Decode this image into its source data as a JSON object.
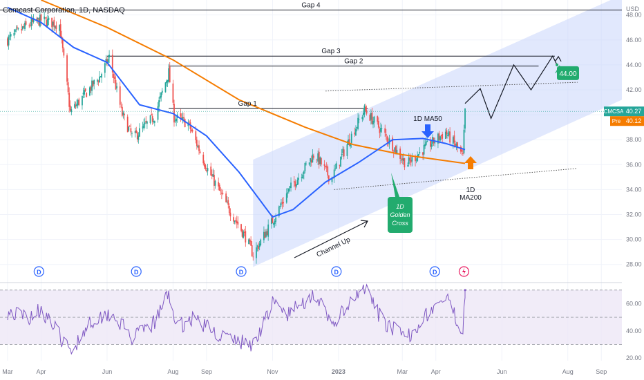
{
  "header": {
    "title": "Comcast Corporation, 1D, NASDAQ",
    "currency": "USD"
  },
  "colors": {
    "up": "#26a69a",
    "down": "#ef5350",
    "ma50": "#2962ff",
    "ma200": "#f57c00",
    "channel": "#c8d6fb",
    "rsi": "#7e57c2",
    "rsi_band": "#ede7f6",
    "badge_green": "#22ab6e",
    "badge_last": "#26a69a",
    "badge_pre": "#f57c00"
  },
  "icons": {
    "dividend": "D",
    "earnings": "lightning-icon"
  },
  "chart_data": [
    {
      "type": "line",
      "title": "Comcast Corporation, 1D, NASDAQ",
      "ylabel": "USD",
      "ylim": [
        26.6,
        49.2
      ],
      "x_axis_labels": [
        "Mar",
        "Apr",
        "Jun",
        "Aug",
        "Sep",
        "Nov",
        "2023",
        "Mar",
        "Apr",
        "Jun",
        "Aug",
        "Sep"
      ],
      "y_axis_labels": [
        "48.00",
        "46.00",
        "44.00",
        "42.00",
        "40.00",
        "38.00",
        "36.00",
        "34.00",
        "32.00",
        "30.00",
        "28.00"
      ],
      "y_ticks": [
        48,
        46,
        44,
        42,
        40,
        38,
        36,
        34,
        32,
        30,
        28
      ],
      "grid": true,
      "price_path": [
        [
          "2022-03-01",
          46.0
        ],
        [
          "2022-03-20",
          47.2
        ],
        [
          "2022-04-01",
          47.6
        ],
        [
          "2022-04-18",
          47.2
        ],
        [
          "2022-04-28",
          40.2
        ],
        [
          "2022-05-15",
          42.0
        ],
        [
          "2022-05-25",
          43.0
        ],
        [
          "2022-06-03",
          44.6
        ],
        [
          "2022-06-15",
          40.0
        ],
        [
          "2022-06-25",
          38.1
        ],
        [
          "2022-07-15",
          39.9
        ],
        [
          "2022-07-28",
          43.4
        ],
        [
          "2022-08-02",
          39.8
        ],
        [
          "2022-08-15",
          39.3
        ],
        [
          "2022-09-01",
          35.8
        ],
        [
          "2022-09-20",
          32.7
        ],
        [
          "2022-10-07",
          30.2
        ],
        [
          "2022-10-14",
          28.8
        ],
        [
          "2022-11-01",
          31.5
        ],
        [
          "2022-11-15",
          33.8
        ],
        [
          "2022-12-10",
          36.9
        ],
        [
          "2022-12-25",
          34.8
        ],
        [
          "2023-01-10",
          37.8
        ],
        [
          "2023-01-25",
          40.4
        ],
        [
          "2023-02-10",
          38.7
        ],
        [
          "2023-03-05",
          36.0
        ],
        [
          "2023-03-20",
          37.2
        ],
        [
          "2023-04-10",
          38.6
        ],
        [
          "2023-04-22",
          37.2
        ],
        [
          "2023-04-26",
          36.6
        ],
        [
          "2023-04-28",
          40.27
        ]
      ],
      "series": [
        {
          "name": "1D MA50",
          "values": [
            [
              "2022-03-01",
              48.6
            ],
            [
              "2022-04-01",
              47.4
            ],
            [
              "2022-05-01",
              45.4
            ],
            [
              "2022-06-01",
              44.2
            ],
            [
              "2022-07-01",
              40.8
            ],
            [
              "2022-08-01",
              40.1
            ],
            [
              "2022-09-01",
              38.3
            ],
            [
              "2022-10-01",
              35.4
            ],
            [
              "2022-11-01",
              31.8
            ],
            [
              "2022-11-20",
              32.4
            ],
            [
              "2022-12-20",
              34.6
            ],
            [
              "2023-01-20",
              36.2
            ],
            [
              "2023-02-20",
              38.0
            ],
            [
              "2023-03-20",
              38.1
            ],
            [
              "2023-04-10",
              37.7
            ],
            [
              "2023-04-28",
              37.2
            ]
          ]
        },
        {
          "name": "1D MA200",
          "values": [
            [
              "2022-04-01",
              49.2
            ],
            [
              "2022-06-01",
              47.0
            ],
            [
              "2022-08-01",
              44.4
            ],
            [
              "2022-10-01",
              41.2
            ],
            [
              "2022-12-01",
              39.0
            ],
            [
              "2023-01-15",
              37.6
            ],
            [
              "2023-03-01",
              36.8
            ],
            [
              "2023-04-28",
              36.1
            ]
          ]
        }
      ],
      "horizontal_levels": [
        {
          "label": "Gap 4",
          "value": 48.4
        },
        {
          "label": "Gap 3",
          "value": 44.7
        },
        {
          "label": "Gap 2",
          "value": 43.9
        },
        {
          "label": "Gap 1",
          "value": 40.5
        }
      ],
      "projection": [
        [
          "2023-04-28",
          40.9
        ],
        [
          "2023-05-12",
          42.1
        ],
        [
          "2023-05-22",
          39.7
        ],
        [
          "2023-06-12",
          44.0
        ],
        [
          "2023-06-28",
          42.0
        ],
        [
          "2023-07-18",
          44.7
        ],
        [
          "2023-07-22",
          44.0
        ]
      ],
      "target": {
        "label": "44.00",
        "value": 44.0
      },
      "last_price": {
        "symbol": "CMCSA",
        "value": "40.27"
      },
      "pre_price": {
        "symbol": "Pre",
        "value": "40.12"
      },
      "annotations": [
        {
          "text": "Channel Up"
        },
        {
          "text": "1D MA50"
        },
        {
          "text": "1D MA200",
          "lines": [
            "1D",
            "MA200"
          ]
        },
        {
          "text": "1D Golden Cross",
          "lines": [
            "1D",
            "Golden",
            "Cross"
          ]
        }
      ]
    },
    {
      "type": "line",
      "title": "",
      "ylim": [
        18,
        75
      ],
      "y_axis_labels": [
        "60.00",
        "40.00",
        "20.00"
      ],
      "y_ticks": [
        60,
        40,
        20
      ],
      "bands": [
        30,
        50,
        70
      ],
      "series": [
        {
          "name": "",
          "values": [
            [
              "2022-03-01",
              54
            ],
            [
              "2022-03-20",
              50
            ],
            [
              "2022-04-01",
              56
            ],
            [
              "2022-04-15",
              40
            ],
            [
              "2022-04-28",
              24
            ],
            [
              "2022-05-15",
              46
            ],
            [
              "2022-06-05",
              54
            ],
            [
              "2022-06-25",
              34
            ],
            [
              "2022-07-15",
              46
            ],
            [
              "2022-07-28",
              68
            ],
            [
              "2022-08-05",
              42
            ],
            [
              "2022-08-20",
              50
            ],
            [
              "2022-09-10",
              38
            ],
            [
              "2022-10-01",
              32
            ],
            [
              "2022-10-14",
              30
            ],
            [
              "2022-11-01",
              60
            ],
            [
              "2022-11-15",
              52
            ],
            [
              "2022-12-10",
              68
            ],
            [
              "2022-12-25",
              44
            ],
            [
              "2023-01-15",
              62
            ],
            [
              "2023-01-25",
              72
            ],
            [
              "2023-02-10",
              48
            ],
            [
              "2023-03-05",
              34
            ],
            [
              "2023-03-20",
              50
            ],
            [
              "2023-04-10",
              64
            ],
            [
              "2023-04-26",
              40
            ],
            [
              "2023-04-28",
              70
            ]
          ]
        }
      ]
    }
  ]
}
